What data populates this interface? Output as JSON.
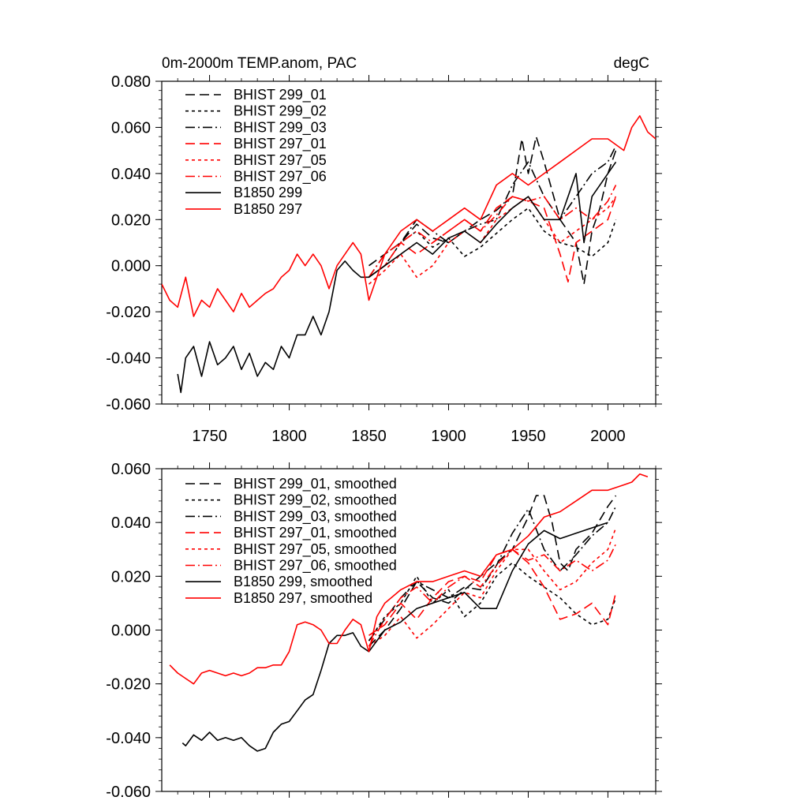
{
  "chart_data": [
    {
      "type": "line",
      "title": "0m-2000m TEMP.anom, PAC",
      "units": "degC",
      "xlim": [
        1720,
        2030
      ],
      "ylim": [
        -0.06,
        0.08
      ],
      "yticks": [
        "-0.060",
        "-0.040",
        "-0.020",
        "0.000",
        "0.020",
        "0.040",
        "0.060",
        "0.080"
      ],
      "xticks": [
        "1750",
        "1800",
        "1850",
        "1900",
        "1950",
        "2000"
      ],
      "legend_position": "top-left",
      "series": [
        {
          "name": "BHIST 299_01",
          "color": "#000000",
          "dash": "long",
          "x": [
            1850,
            1860,
            1870,
            1880,
            1890,
            1900,
            1910,
            1920,
            1930,
            1940,
            1946,
            1950,
            1955,
            1960,
            1970,
            1980,
            1985,
            1990,
            1995,
            2000,
            2005
          ],
          "y": [
            0.0,
            0.005,
            0.01,
            0.018,
            0.012,
            0.01,
            0.015,
            0.02,
            0.024,
            0.03,
            0.055,
            0.04,
            0.056,
            0.045,
            0.02,
            0.01,
            -0.008,
            0.015,
            0.025,
            0.04,
            0.05
          ]
        },
        {
          "name": "BHIST 299_02",
          "color": "#000000",
          "dash": "short",
          "x": [
            1850,
            1860,
            1870,
            1880,
            1890,
            1900,
            1910,
            1920,
            1930,
            1940,
            1950,
            1960,
            1970,
            1980,
            1990,
            2000,
            2005
          ],
          "y": [
            -0.005,
            0.0,
            0.01,
            0.015,
            0.008,
            0.012,
            0.004,
            0.008,
            0.014,
            0.02,
            0.025,
            0.015,
            0.01,
            0.008,
            0.004,
            0.01,
            0.02
          ]
        },
        {
          "name": "BHIST 299_03",
          "color": "#000000",
          "dash": "dashdot",
          "x": [
            1850,
            1860,
            1870,
            1880,
            1890,
            1900,
            1910,
            1920,
            1930,
            1940,
            1950,
            1960,
            1970,
            1980,
            1990,
            2000,
            2005
          ],
          "y": [
            -0.005,
            0.005,
            0.01,
            0.02,
            0.015,
            0.01,
            0.015,
            0.018,
            0.02,
            0.035,
            0.045,
            0.03,
            0.02,
            0.03,
            0.04,
            0.045,
            0.052
          ]
        },
        {
          "name": "BHIST 297_01",
          "color": "#ff0000",
          "dash": "long",
          "x": [
            1850,
            1860,
            1870,
            1880,
            1890,
            1900,
            1910,
            1920,
            1930,
            1940,
            1950,
            1960,
            1970,
            1975,
            1980,
            1990,
            2000,
            2005
          ],
          "y": [
            -0.005,
            0.0,
            0.01,
            0.005,
            0.01,
            0.015,
            0.02,
            0.015,
            0.025,
            0.03,
            0.028,
            0.025,
            0.005,
            -0.007,
            0.01,
            0.015,
            0.02,
            0.03
          ]
        },
        {
          "name": "BHIST 297_05",
          "color": "#ff0000",
          "dash": "short",
          "x": [
            1850,
            1860,
            1870,
            1880,
            1890,
            1900,
            1910,
            1920,
            1930,
            1940,
            1950,
            1960,
            1970,
            1980,
            1990,
            2000,
            2005
          ],
          "y": [
            -0.008,
            -0.002,
            0.005,
            -0.005,
            0.0,
            0.01,
            0.015,
            0.01,
            0.02,
            0.025,
            0.03,
            0.02,
            0.01,
            0.015,
            0.02,
            0.025,
            0.03
          ]
        },
        {
          "name": "BHIST 297_06",
          "color": "#ff0000",
          "dash": "dashdot",
          "x": [
            1850,
            1860,
            1870,
            1880,
            1890,
            1900,
            1910,
            1920,
            1930,
            1940,
            1950,
            1960,
            1970,
            1980,
            1990,
            2000,
            2005
          ],
          "y": [
            -0.005,
            0.005,
            0.01,
            0.015,
            0.01,
            0.015,
            0.02,
            0.015,
            0.022,
            0.03,
            0.028,
            0.03,
            0.02,
            0.025,
            0.02,
            0.028,
            0.035
          ]
        },
        {
          "name": "B1850 299",
          "color": "#000000",
          "dash": "solid",
          "x": [
            1730,
            1732,
            1735,
            1740,
            1745,
            1750,
            1755,
            1760,
            1765,
            1770,
            1775,
            1780,
            1785,
            1790,
            1795,
            1800,
            1805,
            1810,
            1815,
            1820,
            1825,
            1830,
            1835,
            1840,
            1845,
            1850,
            1860,
            1870,
            1880,
            1890,
            1900,
            1910,
            1920,
            1930,
            1940,
            1950,
            1960,
            1970,
            1980,
            1985,
            1990,
            2000,
            2005
          ],
          "y": [
            -0.047,
            -0.055,
            -0.04,
            -0.035,
            -0.048,
            -0.033,
            -0.043,
            -0.04,
            -0.035,
            -0.045,
            -0.038,
            -0.048,
            -0.042,
            -0.045,
            -0.035,
            -0.04,
            -0.03,
            -0.03,
            -0.022,
            -0.03,
            -0.02,
            -0.002,
            0.002,
            -0.002,
            -0.005,
            -0.005,
            0.0,
            0.005,
            0.01,
            0.005,
            0.012,
            0.015,
            0.01,
            0.018,
            0.025,
            0.03,
            0.02,
            0.02,
            0.04,
            0.01,
            0.03,
            0.04,
            0.045
          ]
        },
        {
          "name": "B1850 297",
          "color": "#ff0000",
          "dash": "solid",
          "x": [
            1720,
            1725,
            1730,
            1735,
            1740,
            1745,
            1750,
            1755,
            1760,
            1765,
            1770,
            1775,
            1780,
            1785,
            1790,
            1795,
            1800,
            1805,
            1810,
            1815,
            1820,
            1825,
            1830,
            1835,
            1840,
            1845,
            1850,
            1860,
            1870,
            1880,
            1890,
            1900,
            1910,
            1920,
            1930,
            1940,
            1950,
            1960,
            1970,
            1980,
            1990,
            2000,
            2010,
            2015,
            2020,
            2025,
            2030
          ],
          "y": [
            -0.008,
            -0.015,
            -0.018,
            -0.005,
            -0.022,
            -0.015,
            -0.018,
            -0.01,
            -0.015,
            -0.02,
            -0.012,
            -0.018,
            -0.015,
            -0.012,
            -0.01,
            -0.005,
            -0.002,
            0.005,
            0.0,
            0.005,
            0.0,
            -0.01,
            0.0,
            0.005,
            0.01,
            0.005,
            -0.015,
            0.005,
            0.015,
            0.02,
            0.015,
            0.02,
            0.025,
            0.02,
            0.035,
            0.04,
            0.035,
            0.04,
            0.045,
            0.05,
            0.055,
            0.055,
            0.05,
            0.06,
            0.065,
            0.058,
            0.055
          ]
        }
      ]
    },
    {
      "type": "line",
      "xlim": [
        1720,
        2030
      ],
      "ylim": [
        -0.06,
        0.06
      ],
      "yticks": [
        "-0.060",
        "-0.040",
        "-0.020",
        "0.000",
        "0.020",
        "0.040",
        "0.060"
      ],
      "xticks": [],
      "legend_position": "top-left",
      "series": [
        {
          "name": "BHIST 299_01, smoothed",
          "color": "#000000",
          "dash": "long",
          "x": [
            1850,
            1860,
            1870,
            1880,
            1890,
            1900,
            1910,
            1920,
            1930,
            1940,
            1950,
            1955,
            1960,
            1965,
            1970,
            1975,
            1980,
            1990,
            2000,
            2005
          ],
          "y": [
            -0.006,
            0.0,
            0.008,
            0.018,
            0.012,
            0.01,
            0.015,
            0.02,
            0.025,
            0.03,
            0.042,
            0.05,
            0.05,
            0.04,
            0.025,
            0.022,
            0.03,
            0.036,
            0.046,
            0.05
          ]
        },
        {
          "name": "BHIST 299_02, smoothed",
          "color": "#000000",
          "dash": "short",
          "x": [
            1850,
            1860,
            1870,
            1880,
            1890,
            1900,
            1910,
            1920,
            1930,
            1940,
            1950,
            1960,
            1970,
            1980,
            1990,
            2000,
            2005
          ],
          "y": [
            -0.004,
            0.005,
            0.01,
            0.02,
            0.01,
            0.015,
            0.005,
            0.01,
            0.02,
            0.025,
            0.02,
            0.016,
            0.012,
            0.006,
            0.002,
            0.004,
            0.012
          ]
        },
        {
          "name": "BHIST 299_03, smoothed",
          "color": "#000000",
          "dash": "dashdot",
          "x": [
            1850,
            1860,
            1870,
            1880,
            1890,
            1900,
            1910,
            1920,
            1930,
            1940,
            1950,
            1960,
            1970,
            1980,
            1990,
            2000,
            2005
          ],
          "y": [
            -0.004,
            0.004,
            0.012,
            0.018,
            0.015,
            0.012,
            0.016,
            0.015,
            0.024,
            0.036,
            0.045,
            0.03,
            0.022,
            0.028,
            0.035,
            0.04,
            0.046
          ]
        },
        {
          "name": "BHIST 297_01, smoothed",
          "color": "#ff0000",
          "dash": "long",
          "x": [
            1850,
            1860,
            1870,
            1880,
            1890,
            1900,
            1910,
            1920,
            1930,
            1940,
            1950,
            1960,
            1970,
            1980,
            1990,
            2000,
            2005
          ],
          "y": [
            -0.002,
            0.002,
            0.01,
            0.004,
            0.012,
            0.018,
            0.02,
            0.018,
            0.028,
            0.03,
            0.025,
            0.016,
            0.004,
            0.006,
            0.01,
            0.002,
            0.014
          ]
        },
        {
          "name": "BHIST 297_05, smoothed",
          "color": "#ff0000",
          "dash": "short",
          "x": [
            1850,
            1860,
            1870,
            1880,
            1890,
            1900,
            1910,
            1920,
            1930,
            1940,
            1950,
            1960,
            1970,
            1980,
            1990,
            2000,
            2005
          ],
          "y": [
            -0.006,
            -0.002,
            0.005,
            -0.003,
            0.002,
            0.008,
            0.014,
            0.012,
            0.022,
            0.03,
            0.03,
            0.022,
            0.015,
            0.018,
            0.025,
            0.03,
            0.038
          ]
        },
        {
          "name": "BHIST 297_06, smoothed",
          "color": "#ff0000",
          "dash": "dashdot",
          "x": [
            1850,
            1860,
            1870,
            1880,
            1890,
            1900,
            1910,
            1920,
            1930,
            1940,
            1950,
            1960,
            1970,
            1980,
            1990,
            2000,
            2005
          ],
          "y": [
            -0.006,
            0.004,
            0.012,
            0.016,
            0.01,
            0.016,
            0.02,
            0.016,
            0.024,
            0.03,
            0.026,
            0.028,
            0.022,
            0.026,
            0.022,
            0.026,
            0.032
          ]
        },
        {
          "name": "B1850 299, smoothed",
          "color": "#000000",
          "dash": "solid",
          "x": [
            1733,
            1735,
            1740,
            1745,
            1750,
            1755,
            1760,
            1765,
            1770,
            1775,
            1780,
            1785,
            1790,
            1795,
            1800,
            1805,
            1810,
            1815,
            1820,
            1825,
            1830,
            1835,
            1840,
            1845,
            1850,
            1860,
            1870,
            1880,
            1890,
            1900,
            1910,
            1920,
            1930,
            1940,
            1950,
            1960,
            1970,
            1980,
            1990,
            2000
          ],
          "y": [
            -0.042,
            -0.043,
            -0.039,
            -0.041,
            -0.038,
            -0.041,
            -0.04,
            -0.041,
            -0.04,
            -0.043,
            -0.045,
            -0.044,
            -0.038,
            -0.035,
            -0.034,
            -0.03,
            -0.026,
            -0.024,
            -0.015,
            -0.005,
            -0.002,
            -0.002,
            -0.001,
            -0.006,
            -0.008,
            0.0,
            0.003,
            0.008,
            0.01,
            0.012,
            0.014,
            0.008,
            0.008,
            0.022,
            0.032,
            0.037,
            0.034,
            0.036,
            0.038,
            0.04
          ]
        },
        {
          "name": "B1850 297, smoothed",
          "color": "#ff0000",
          "dash": "solid",
          "x": [
            1725,
            1730,
            1735,
            1740,
            1745,
            1750,
            1755,
            1760,
            1765,
            1770,
            1775,
            1780,
            1785,
            1790,
            1795,
            1800,
            1805,
            1810,
            1815,
            1820,
            1825,
            1830,
            1835,
            1840,
            1845,
            1850,
            1855,
            1860,
            1870,
            1880,
            1890,
            1900,
            1910,
            1920,
            1930,
            1940,
            1950,
            1960,
            1970,
            1980,
            1990,
            2000,
            2010,
            2015,
            2020,
            2025
          ],
          "y": [
            -0.013,
            -0.016,
            -0.018,
            -0.02,
            -0.016,
            -0.015,
            -0.016,
            -0.017,
            -0.016,
            -0.017,
            -0.016,
            -0.014,
            -0.014,
            -0.013,
            -0.013,
            -0.008,
            0.002,
            0.003,
            0.002,
            0.0,
            -0.005,
            -0.005,
            0.0,
            0.004,
            0.002,
            -0.008,
            0.005,
            0.01,
            0.015,
            0.018,
            0.018,
            0.02,
            0.022,
            0.02,
            0.028,
            0.03,
            0.035,
            0.042,
            0.044,
            0.048,
            0.052,
            0.052,
            0.054,
            0.055,
            0.058,
            0.057
          ]
        }
      ]
    }
  ]
}
